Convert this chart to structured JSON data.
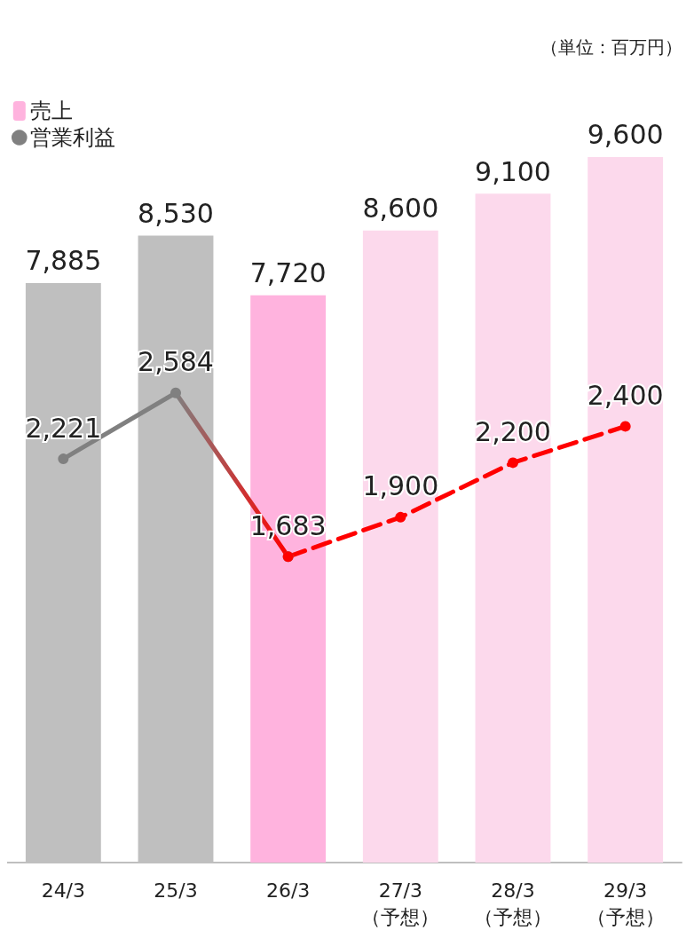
{
  "chart_data": {
    "type": "bar",
    "annotations": [
      "（単位：百万円）"
    ],
    "categories": [
      "24/3",
      "25/3",
      "26/3",
      "27/3\n（予想）",
      "28/3\n（予想）",
      "29/3\n（予想）"
    ],
    "legend": "top left",
    "grid": false,
    "series": [
      {
        "name": "売上",
        "color": "#ffb3de",
        "colors": [
          "#bfbfbf",
          "#bfbfbf",
          "#ffb3de",
          "#fcd9ec",
          "#fcd9ec",
          "#fcd9ec"
        ],
        "values": [
          7885,
          8530,
          7720,
          8600,
          9100,
          9600
        ],
        "value_labels": [
          "7,885",
          "8,530",
          "7,720",
          "8,600",
          "9,100",
          "9,600"
        ]
      },
      {
        "name": "営業利益",
        "type": "line",
        "axis": "y2",
        "color": "#808080",
        "line_style": "solid",
        "marker": "circle",
        "values": [
          2221,
          2584,
          1683,
          null,
          null,
          null
        ],
        "value_labels": [
          "2,221",
          "2,584",
          "1,683",
          null,
          null,
          null
        ]
      },
      {
        "type": "line",
        "axis": "y2",
        "color": "#ff0000",
        "line_style": "dashed",
        "marker": "circle",
        "values": [
          null,
          null,
          1683,
          1900,
          2200,
          2400
        ],
        "value_labels": [
          null,
          null,
          null,
          "1,900",
          "2,200",
          "2,400"
        ]
      }
    ]
  }
}
